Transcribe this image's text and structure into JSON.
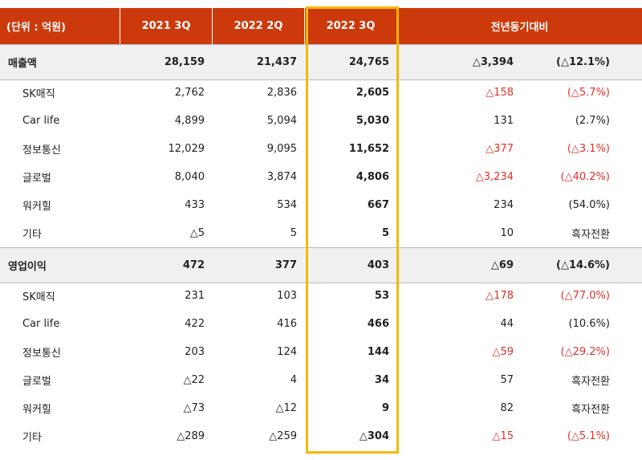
{
  "table": {
    "header": [
      "(단위 : 억원)",
      "2021 3Q",
      "2022 2Q",
      "2022 3Q",
      "전년동기대비"
    ],
    "sections": [
      {
        "title_row": [
          "매출액",
          "28,159",
          "21,437",
          "24,765",
          "△3,394",
          "(△12.1%)"
        ],
        "rows": [
          [
            "SK매직",
            "2,762",
            "2,836",
            "2,605",
            "△158",
            "(△5.7%)"
          ],
          [
            "Car life",
            "4,899",
            "5,094",
            "5,030",
            "131",
            "(2.7%)"
          ],
          [
            "정보통신",
            "12,029",
            "9,095",
            "11,652",
            "△377",
            "(△3.1%)"
          ],
          [
            "글로벌",
            "8,040",
            "3,874",
            "4,806",
            "△3,234",
            "(△40.2%)"
          ],
          [
            "워커힐",
            "433",
            "534",
            "667",
            "234",
            "(54.0%)"
          ],
          [
            "기타",
            "△5",
            "5",
            "5",
            "10",
            "흑자전환"
          ]
        ]
      },
      {
        "title_row": [
          "영업이익",
          "472",
          "377",
          "403",
          "△69",
          "(△14.6%)"
        ],
        "rows": [
          [
            "SK매직",
            "231",
            "103",
            "53",
            "△178",
            "(△77.0%)"
          ],
          [
            "Car life",
            "422",
            "416",
            "466",
            "44",
            "(10.6%)"
          ],
          [
            "정보통신",
            "203",
            "124",
            "144",
            "△59",
            "(△29.2%)"
          ],
          [
            "글로벌",
            "△22",
            "4",
            "34",
            "57",
            "흑자전환"
          ],
          [
            "워커힐",
            "△73",
            "△12",
            "9",
            "82",
            "흑자전환"
          ],
          [
            "기타",
            "△289",
            "△259",
            "△304",
            "△15",
            "(△5.1%)"
          ]
        ]
      }
    ]
  }
}
